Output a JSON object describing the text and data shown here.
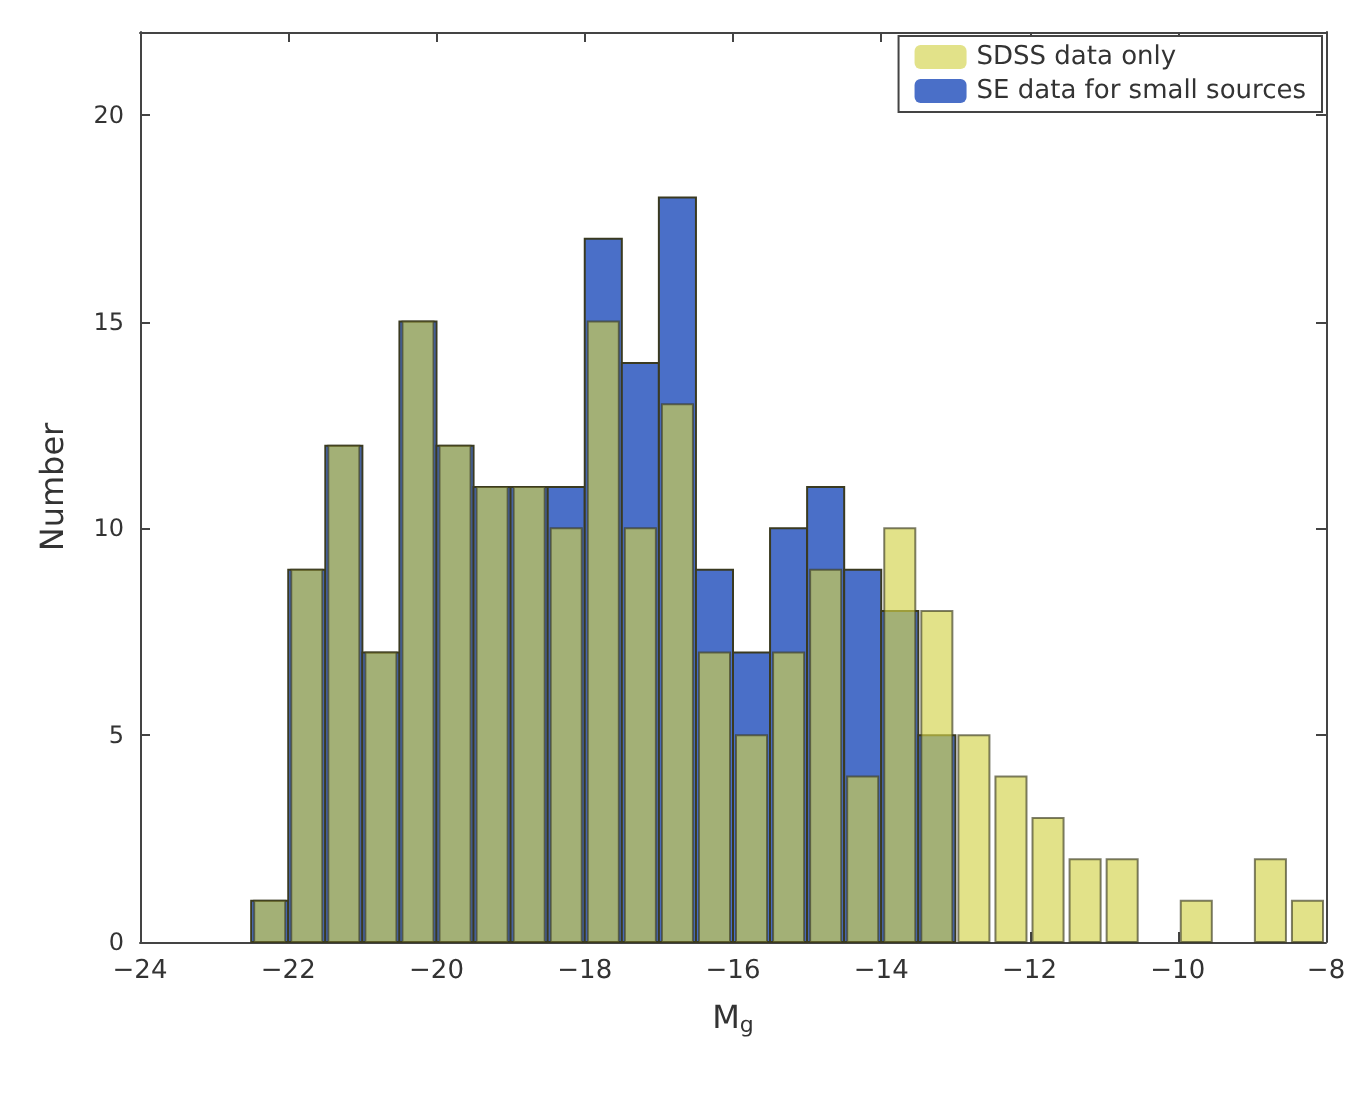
{
  "chart_data": {
    "type": "histogram",
    "xlabel": "M$_{g}$",
    "ylabel": "Number",
    "bins": [
      -22.5,
      -22,
      -21.5,
      -21,
      -20.5,
      -20,
      -19.5,
      -19,
      -18.5,
      -18,
      -17.5,
      -17,
      -16.5,
      -16,
      -15.5,
      -15,
      -14.5,
      -14,
      -13.5,
      -13,
      -12.5,
      -12,
      -11.5,
      -11,
      -10.5,
      -10,
      -9.5,
      -9,
      -8.5,
      -8
    ],
    "series": [
      {
        "name": "SE data for small sources",
        "color": "#4a6fc8",
        "values": [
          1,
          9,
          12,
          7,
          15,
          12,
          11,
          11,
          11,
          17,
          14,
          18,
          9,
          7,
          10,
          11,
          9,
          8,
          5,
          0,
          0,
          0,
          0,
          0,
          0,
          0,
          0,
          0,
          0
        ]
      },
      {
        "name": "SDSS data only",
        "color": "#d2d24a",
        "values": [
          1,
          9,
          12,
          7,
          15,
          12,
          11,
          11,
          10,
          15,
          10,
          13,
          7,
          5,
          7,
          9,
          4,
          10,
          8,
          5,
          4,
          3,
          2,
          2,
          0,
          1,
          0,
          2,
          1
        ]
      }
    ],
    "xlim": [
      -24,
      -8
    ],
    "xticks": [
      -24,
      -22,
      -20,
      -18,
      -16,
      -14,
      -12,
      -10,
      -8
    ],
    "ylim": [
      0,
      22
    ],
    "yticks": [
      0,
      5,
      10,
      15,
      20
    ],
    "grid": false,
    "legend": "top right"
  }
}
